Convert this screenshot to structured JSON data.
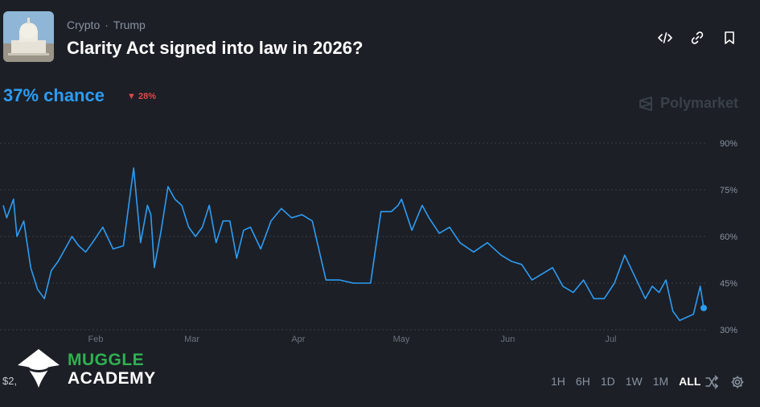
{
  "header": {
    "category": "Crypto",
    "separator": "·",
    "tag": "Trump",
    "title": "Clarity Act signed into law in 2026?"
  },
  "odds": {
    "chance": "37% chance",
    "change": "28%",
    "change_direction": "down"
  },
  "watermark": "Polymarket",
  "footer": {
    "volume": "$2,",
    "brand_line1": "MUGGLE",
    "brand_line2": "ACADEMY",
    "ranges": [
      "1H",
      "6H",
      "1D",
      "1W",
      "1M",
      "ALL"
    ],
    "active_range": "ALL"
  },
  "colors": {
    "background": "#1c1f26",
    "line": "#2d9cf3",
    "down": "#e0484b",
    "brand_green": "#2fb150"
  },
  "chart_data": {
    "type": "line",
    "title": "",
    "xlabel": "",
    "ylabel": "",
    "x_ticks": [
      "Feb",
      "Mar",
      "Apr",
      "May",
      "Jun",
      "Jul"
    ],
    "y_ticks": [
      "90%",
      "75%",
      "60%",
      "45%",
      "30%"
    ],
    "ylim": [
      30,
      90
    ],
    "grid": true,
    "series": [
      {
        "x": [
          "2026-01-06",
          "2026-01-07",
          "2026-01-09",
          "2026-01-10",
          "2026-01-12",
          "2026-01-14",
          "2026-01-16",
          "2026-01-18",
          "2026-01-20",
          "2026-01-22",
          "2026-01-24",
          "2026-01-26",
          "2026-01-28",
          "2026-01-30",
          "2026-02-01",
          "2026-02-04",
          "2026-02-07",
          "2026-02-10",
          "2026-02-13",
          "2026-02-15",
          "2026-02-17",
          "2026-02-18",
          "2026-02-19",
          "2026-02-21",
          "2026-02-23",
          "2026-02-25",
          "2026-02-27",
          "2026-03-01",
          "2026-03-03",
          "2026-03-05",
          "2026-03-07",
          "2026-03-09",
          "2026-03-11",
          "2026-03-13",
          "2026-03-15",
          "2026-03-17",
          "2026-03-19",
          "2026-03-22",
          "2026-03-25",
          "2026-03-28",
          "2026-03-31",
          "2026-04-03",
          "2026-04-06",
          "2026-04-10",
          "2026-04-14",
          "2026-04-18",
          "2026-04-21",
          "2026-04-23",
          "2026-04-26",
          "2026-04-29",
          "2026-05-01",
          "2026-05-02",
          "2026-05-05",
          "2026-05-08",
          "2026-05-10",
          "2026-05-13",
          "2026-05-16",
          "2026-05-19",
          "2026-05-23",
          "2026-05-27",
          "2026-05-31",
          "2026-06-03",
          "2026-06-06",
          "2026-06-09",
          "2026-06-12",
          "2026-06-15",
          "2026-06-18",
          "2026-06-21",
          "2026-06-24",
          "2026-06-27",
          "2026-06-30",
          "2026-07-03",
          "2026-07-06",
          "2026-07-09",
          "2026-07-12",
          "2026-07-14",
          "2026-07-16",
          "2026-07-18",
          "2026-07-20",
          "2026-07-22",
          "2026-07-24",
          "2026-07-26",
          "2026-07-28",
          "2026-07-29"
        ],
        "values": [
          70,
          66,
          72,
          60,
          65,
          50,
          43,
          40,
          49,
          52,
          56,
          60,
          57,
          55,
          58,
          63,
          56,
          57,
          82,
          58,
          70,
          67,
          50,
          62,
          76,
          72,
          70,
          63,
          60,
          63,
          70,
          58,
          65,
          65,
          53,
          62,
          63,
          56,
          65,
          69,
          66,
          67,
          65,
          46,
          46,
          45,
          45,
          45,
          68,
          68,
          70,
          72,
          62,
          70,
          66,
          61,
          63,
          58,
          55,
          58,
          54,
          52,
          51,
          46,
          48,
          50,
          44,
          42,
          46,
          40,
          40,
          45,
          54,
          47,
          40,
          44,
          42,
          46,
          36,
          33,
          34,
          35,
          44,
          37
        ]
      }
    ]
  }
}
